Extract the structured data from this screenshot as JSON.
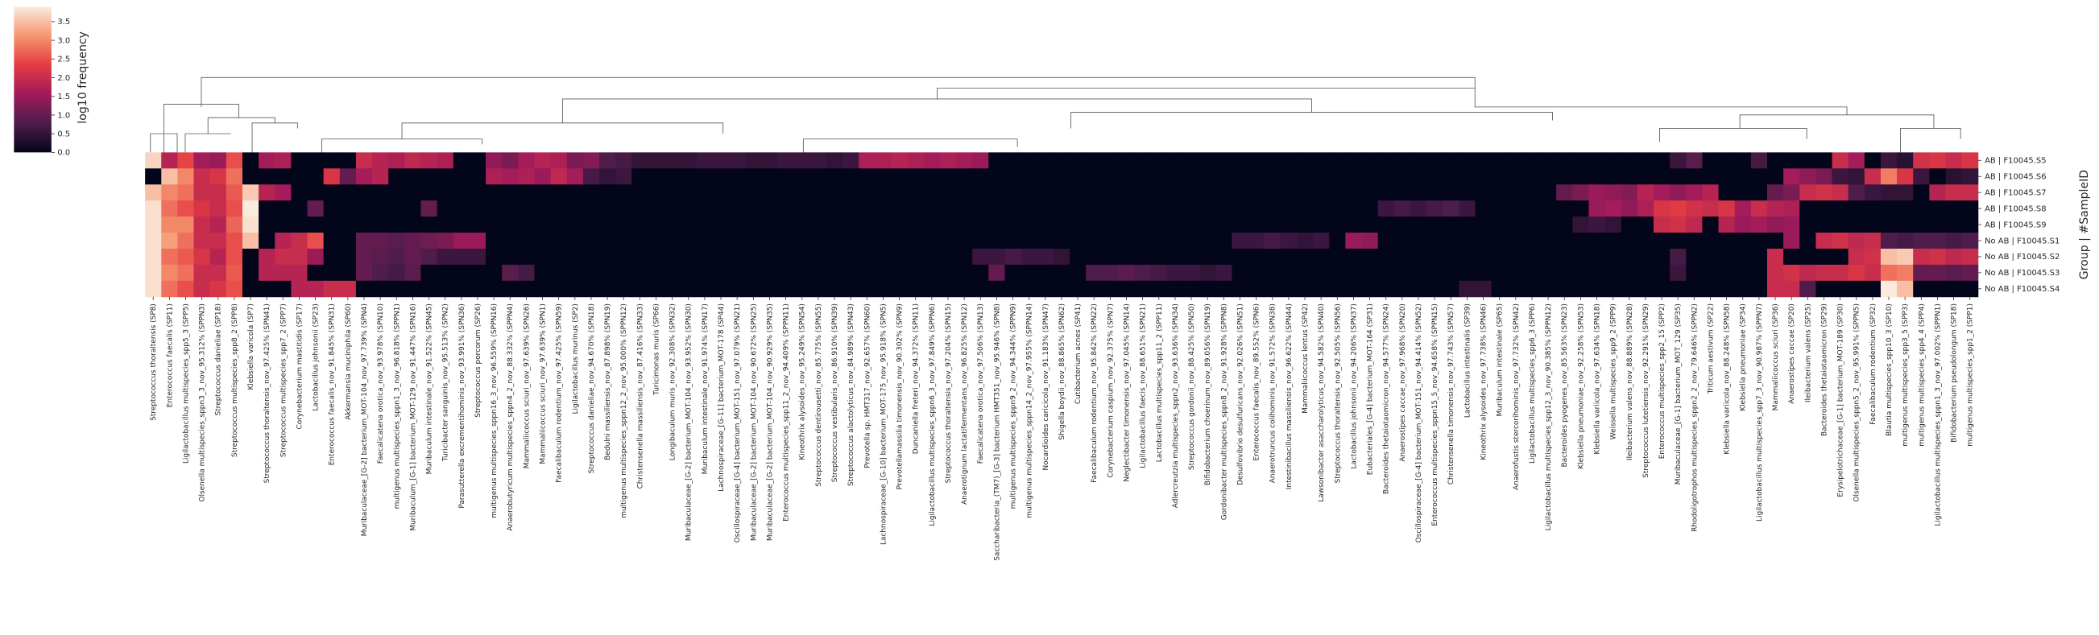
{
  "chart_data": {
    "type": "heatmap",
    "colormap": "rocket",
    "colorbar_label": "log10 frequency",
    "ylabel": "Group | #SampleID",
    "clim": [
      0,
      3.9
    ],
    "colorbar_ticks": [
      {
        "value": 0,
        "label": "0.0"
      },
      {
        "value": 0.5,
        "label": "0.5"
      },
      {
        "value": 1,
        "label": "1.0"
      },
      {
        "value": 1.5,
        "label": "1.5"
      },
      {
        "value": 2,
        "label": "2.0"
      },
      {
        "value": 2.5,
        "label": "2.5"
      },
      {
        "value": 3,
        "label": "3.0"
      },
      {
        "value": 3.5,
        "label": "3.5"
      }
    ],
    "rows": [
      "AB | F10045.S5",
      "AB | F10045.S6",
      "AB | F10045.S7",
      "AB | F10045.S8",
      "AB | F10045.S9",
      "No AB | F10045.S1",
      "No AB | F10045.S2",
      "No AB | F10045.S3",
      "No AB | F10045.S4"
    ],
    "columns": [
      "Streptococcus thoraltensis (SP8)",
      "Enterococcus faecalis (SP11)",
      "Ligilactobacillus multispecies_spp5_3 (SPP5)",
      "Olsenella multispecies_sppn3_3_nov_95.312% (SPPN3)",
      "Streptococcus danieliae (SP18)",
      "Streptococcus multispecies_spp8_2 (SPP8)",
      "Klebsiella varicola (SP7)",
      "Streptococcus thoraltensis_nov_97.425% (SPN41)",
      "Streptococcus multispecies_spp7_2 (SPP7)",
      "Corynebacterium mastitidis (SP17)",
      "Lactobacillus johnsonii (SP23)",
      "Enterococcus faecalis_nov_91.845% (SPN31)",
      "Akkermansia muciniphila (SP60)",
      "Muribaculaceae_[G-2] bacterium_MOT-104_nov_97.739% (SPN4)",
      "Faecalicatena orotica_nov_93.978% (SPN10)",
      "multigenus multispecies_sppn1_3_nov_96.818% (SPPN1)",
      "Muribaculum_[G-1] bacterium_MOT-129_nov_91.447% (SPN16)",
      "Muribaculum intestinale_nov_91.522% (SPN45)",
      "Turicibacter sanguinis_nov_95.513% (SPN2)",
      "Parasutterella excrementihominis_nov_93.991% (SPN36)",
      "Streptococcus porcorum (SP26)",
      "multigenus multispecies_sppn16_3_nov_96.559% (SPPN16)",
      "Anaerobutyricum multispecies_sppn4_2_nov_88.332% (SPPN4)",
      "Mammaliicoccus sciuri_nov_97.639% (SPN26)",
      "Mammaliicoccus sciuri_nov_97.639% (SPN1)",
      "Faecalibaculum rodentium_nov_97.425% (SPN59)",
      "Ligilactobacillus murinus (SP2)",
      "Streptococcus danieliae_nov_94.670% (SPN18)",
      "Bedulni massiliensis_nov_87.898% (SPN19)",
      "multigenus multispecies_sppn12_2_nov_95.000% (SPPN12)",
      "Christensenella massiliensis_nov_87.416% (SPN33)",
      "Turicimonas muris (SP66)",
      "Longibaculum muris_nov_92.308% (SPN32)",
      "Muribaculaceae_[G-2] bacterium_MOT-104_nov_93.952% (SPN30)",
      "Muribaculum intestinale_nov_91.974% (SPN17)",
      "Lachnospiraceae_[G-11] bacterium_MOT-178 (SP44)",
      "Oscillospiraceae_[G-4] bacterium_MOT-151_nov_97.079% (SPN21)",
      "Muribaculaceae_[G-2] bacterium_MOT-104_nov_90.672% (SPN25)",
      "Muribaculaceae_[G-2] bacterium_MOT-104_nov_90.929% (SPN35)",
      "Enterococcus multispecies_spp11_2_nov_94.409% (SPPN11)",
      "Kineothrix alysoides_nov_95.249% (SPN54)",
      "Streptococcus dentirousetti_nov_85.775% (SPN55)",
      "Streptococcus vestibularis_nov_86.910% (SPN39)",
      "Streptococcus alactolyticus_nov_84.989% (SPN43)",
      "Prevotella sp. HMT317_nov_92.657% (SPN60)",
      "Lachnospiraceae_[G-10] bacterium_MOT-175_nov_95.918% (SPN5)",
      "Prevotellamassilia timonensis_nov_90.302% (SPN9)",
      "Duncaniella freteri_nov_94.372% (SPN11)",
      "Ligilactobacillus multispecies_sppn6_3_nov_97.849% (SPPN6)",
      "Streptococcus thoraltensis_nov_97.204% (SPN15)",
      "Anaerotignum lactatifermentans_nov_96.825% (SPN12)",
      "Faecalicatena orotica_nov_97.506% (SPN13)",
      "Saccharibacteria_(TM7)_[G-3] bacterium HMT351_nov_95.946% (SPN8)",
      "multigenus multispecies_sppn9_2_nov_94.344% (SPPN9)",
      "multigenus multispecies_sppn14_2_nov_97.955% (SPPN14)",
      "Nocardioides caricicola_nov_91.183% (SPN47)",
      "Shigella boydii_nov_88.865% (SPN62)",
      "Cutibacterium acnes (SP41)",
      "Faecalibaculum rodentium_nov_95.842% (SPN22)",
      "Corynebacterium caspium_nov_92.375% (SPN7)",
      "Neglectibacter timonensis_nov_97.045% (SPN14)",
      "Ligilactobacillus faecis_nov_88.651% (SPN21)",
      "Lactobacillus multispecies_spp11_2 (SPP11)",
      "Adlercreutzia multispecies_sppn2_nov_93.636% (SPN34)",
      "Streptococcus gordonii_nov_88.425% (SPN50)",
      "Bifidobacterium choerinum_nov_89.056% (SPN19)",
      "Gordonibacter multispecies_sppn8_2_nov_91.928% (SPPN8)",
      "Desulfovibrio desulfuricans_nov_92.026% (SPN51)",
      "Enterococcus faecalis_nov_89.552% (SPN6)",
      "Anaerotruncus colihominis_nov_91.572% (SPN38)",
      "Intestinibacillus massiliensis_nov_96.622% (SPN44)",
      "Mammaliicoccus lentus (SP42)",
      "Lawsonibacter asaccharolyticus_nov_94.582% (SPN40)",
      "Streptococcus thoraltensis_nov_92.505% (SPN56)",
      "Lactobacillus johnsonii_nov_94.206% (SPN37)",
      "Eubacteriales_[G-4] bacterium_MOT-164 (SP31)",
      "Bacteroides thetaiotaomicron_nov_94.577% (SPN24)",
      "Anaerostipes caccae_nov_97.968% (SPN20)",
      "Oscillospiraceae_[G-4] bacterium_MOT-151_nov_94.414% (SPN52)",
      "Enterococcus multispecies_sppn15_5_nov_94.658% (SPPN15)",
      "Christensenella timonensis_nov_97.743% (SPN57)",
      "Lactobacillus intestinalis (SP39)",
      "Kineothrix alysoides_nov_97.738% (SPN46)",
      "Muribaculum intestinale (SP65)",
      "Anaerofustis stercorihominis_nov_97.732% (SPN42)",
      "Ligilactobacillus multispecies_spp6_3 (SPP6)",
      "Ligilactobacillus multispecies_spp12_3_nov_90.385% (SPPN12)",
      "Bacteroides pyogenes_nov_85.563% (SPN23)",
      "Klebsiella pneumoniae_nov_92.258% (SPN53)",
      "Klebsiella variicola_nov_97.634% (SPN18)",
      "Weissella multispecies_spp9_2 (SPP9)",
      "Ileibacterium valens_nov_88.889% (SPN28)",
      "Streptococcus lutetiensis_nov_92.291% (SPN29)",
      "Enterococcus multispecies_spp2_15 (SPP2)",
      "Muribaculaceae_[G-1] bacterium_MOT_129 (SP35)",
      "Rhodoligotrophos multispecies_sppn2_2_nov_79.646% (SPPN2)",
      "Triticum aestivum (SP22)",
      "Klebsiella variicola_nov_88.248% (SPN58)",
      "Klebsiella pneumoniae (SP34)",
      "Ligilactobacillus multispecies_spp7_3_nov_90.987% (SPPN7)",
      "Mammaliicoccus sciuri (SP36)",
      "Anaerostipes caccae (SP20)",
      "Ileibacterium valens (SP25)",
      "Bacteroides thetaiotaomicron (SP29)",
      "Erysipelotrichaceae_[G-1] bacterium_MOT-189 (SP30)",
      "Olsenella multispecies_sppn5_2_nov_95.991% (SPPN5)",
      "Faecalibaculum rodentium (SP32)",
      "Blautia multispecies_spp10_3 (SP10)",
      "multigenus multispecies_spp3_5 (SPP3)",
      "multigenus multispecies_spp4_4 (SPP4)",
      "Ligilactobacillus multispecies_sppn1_3_nov_97.002% (SPPN1)",
      "Bifidobacterium pseudolongum (SP18)",
      "multigenus multispecies_spp1_2 (SPP1)"
    ],
    "values": [
      [
        3.7,
        1.8,
        2.4,
        1.6,
        1.5,
        2.5,
        0,
        1.6,
        1.7,
        0,
        0,
        0,
        0,
        2.0,
        1.8,
        1.7,
        1.9,
        1.8,
        1.7,
        0,
        0,
        1.4,
        1.2,
        1.6,
        1.8,
        1.7,
        1.2,
        1.3,
        0.8,
        0.7,
        0.5,
        0.5,
        0.5,
        0.5,
        0.6,
        0.6,
        0.6,
        0.5,
        0.5,
        0.6,
        0.6,
        0.6,
        0.5,
        0.6,
        1.7,
        1.7,
        1.8,
        1.7,
        1.6,
        1.7,
        1.6,
        1.5,
        0,
        0,
        0,
        0,
        0,
        0,
        0,
        0,
        0,
        0,
        0,
        0,
        0,
        0,
        0,
        0,
        0,
        0,
        0,
        0,
        0,
        0,
        0,
        0,
        0,
        0,
        0,
        0,
        0,
        0,
        0,
        0,
        0,
        0,
        0,
        0,
        0,
        0,
        0,
        0,
        0,
        0,
        0.6,
        0.9,
        0,
        0,
        0,
        0.7,
        0,
        0,
        0,
        0,
        2.0,
        1.6,
        0,
        0.6,
        0.4,
        2.1,
        2.2,
        2.0,
        2.2
      ],
      [
        0,
        3.5,
        3.0,
        2.0,
        2.2,
        2.8,
        0,
        0,
        0,
        0,
        0,
        2.2,
        1.0,
        1.6,
        1.8,
        0,
        0,
        0,
        0,
        0,
        0,
        1.7,
        1.6,
        1.7,
        1.5,
        1.9,
        1.6,
        0.7,
        0.5,
        0.6,
        0,
        0,
        0,
        0,
        0,
        0,
        0,
        0,
        0,
        0,
        0,
        0,
        0,
        0,
        0,
        0,
        0,
        0,
        0,
        0,
        0,
        0,
        0,
        0,
        0,
        0,
        0,
        0,
        0,
        0,
        0,
        0,
        0,
        0,
        0,
        0,
        0,
        0,
        0,
        0,
        0,
        0,
        0,
        0,
        0,
        0,
        0,
        0,
        0,
        0,
        0,
        0,
        0,
        0,
        0,
        0,
        0,
        0,
        0,
        0,
        0,
        0,
        0,
        0,
        0,
        0,
        0,
        0,
        0,
        0,
        0,
        1.6,
        1.4,
        1.2,
        0.6,
        0.5,
        2.0,
        2.9,
        2.2,
        0.6,
        0,
        0.4,
        0.5
      ],
      [
        3.5,
        3.0,
        2.8,
        2.0,
        2.0,
        2.6,
        3.6,
        1.8,
        1.6,
        0,
        0,
        0,
        0,
        0,
        0,
        0,
        0,
        0,
        0,
        0,
        0,
        0,
        0,
        0,
        0,
        0,
        0,
        0,
        0,
        0,
        0,
        0,
        0,
        0,
        0,
        0,
        0,
        0,
        0,
        0,
        0,
        0,
        0,
        0,
        0,
        0,
        0,
        0,
        0,
        0,
        0,
        0,
        0,
        0,
        0,
        0,
        0,
        0,
        0,
        0,
        0,
        0,
        0,
        0,
        0,
        0,
        0,
        0,
        0,
        0,
        0,
        0,
        0,
        0,
        0,
        0,
        0,
        0,
        0,
        0,
        0,
        0,
        0,
        0,
        0,
        0,
        0,
        1.0,
        1.2,
        1.5,
        1.4,
        1.3,
        1.8,
        1.6,
        1.4,
        1.6,
        1.8,
        0,
        0,
        0,
        1.0,
        1.2,
        2.0,
        2.1,
        2.0,
        0.8,
        0.6,
        0.5,
        0.5,
        0,
        1.8,
        2.0,
        2.0
      ],
      [
        3.8,
        2.8,
        2.5,
        2.2,
        2.0,
        2.5,
        3.9,
        0,
        0,
        0,
        1.0,
        0,
        0,
        0,
        0,
        0,
        0,
        1.0,
        0,
        0,
        0,
        0,
        0,
        0,
        0,
        0,
        0,
        0,
        0,
        0,
        0,
        0,
        0,
        0,
        0,
        0,
        0,
        0,
        0,
        0,
        0,
        0,
        0,
        0,
        0,
        0,
        0,
        0,
        0,
        0,
        0,
        0,
        0,
        0,
        0,
        0,
        0,
        0,
        0,
        0,
        0,
        0,
        0,
        0,
        0,
        0,
        0,
        0,
        0,
        0,
        0,
        0,
        0,
        0,
        0,
        0,
        0.6,
        0.7,
        0.6,
        0.7,
        0.8,
        0.6,
        0,
        0,
        0,
        0,
        0,
        0,
        0,
        1.5,
        1.6,
        1.4,
        1.7,
        2.2,
        2.3,
        2.1,
        2.0,
        2.2,
        1.6,
        2.0,
        1.8,
        1.7,
        0,
        0,
        0,
        0,
        0,
        0,
        0,
        0,
        0,
        0,
        0
      ],
      [
        3.8,
        3.0,
        3.0,
        2.0,
        1.8,
        2.7,
        3.8,
        0,
        0,
        0,
        0,
        0,
        0,
        0,
        0,
        0,
        0,
        0,
        0,
        0,
        0,
        0,
        0,
        0,
        0,
        0,
        0,
        0,
        0,
        0,
        0,
        0,
        0,
        0,
        0,
        0,
        0,
        0,
        0,
        0,
        0,
        0,
        0,
        0,
        0,
        0,
        0,
        0,
        0,
        0,
        0,
        0,
        0,
        0,
        0,
        0,
        0,
        0,
        0,
        0,
        0,
        0,
        0,
        0,
        0,
        0,
        0,
        0,
        0,
        0,
        0,
        0,
        0,
        0,
        0,
        0,
        0,
        0,
        0,
        0,
        0,
        0,
        0,
        0,
        0,
        0,
        0,
        0,
        0.5,
        0.6,
        0.5,
        0,
        0,
        2.0,
        2.1,
        1.9,
        0,
        1.8,
        1.5,
        1.6,
        1.4,
        1.5,
        0,
        0,
        0,
        0,
        0,
        0,
        0,
        0,
        0,
        0,
        0
      ],
      [
        3.8,
        3.2,
        2.8,
        2.0,
        2.0,
        2.5,
        3.5,
        0,
        1.8,
        2.0,
        2.5,
        0,
        0,
        1.0,
        1.0,
        0.9,
        1.0,
        1.1,
        1.2,
        1.5,
        1.5,
        0,
        0,
        0,
        0,
        0,
        0,
        0,
        0,
        0,
        0,
        0,
        0,
        0,
        0,
        0,
        0,
        0,
        0,
        0,
        0,
        0,
        0,
        0,
        0,
        0,
        0,
        0,
        0,
        0,
        0,
        0,
        0,
        0,
        0,
        0,
        0,
        0,
        0,
        0,
        0,
        0,
        0,
        0,
        0,
        0,
        0,
        0.6,
        0.6,
        0.7,
        0.6,
        0.5,
        0.6,
        0,
        1.5,
        1.4,
        0,
        0,
        0,
        0,
        0,
        0,
        0,
        0,
        0,
        0,
        0,
        0,
        0,
        0,
        0,
        0,
        0,
        0,
        0,
        0,
        0,
        0,
        0,
        0,
        0,
        1.5,
        0,
        2.0,
        2.1,
        1.9,
        2.0,
        0.8,
        0.7,
        0.8,
        0.8,
        0.7,
        0.8
      ],
      [
        3.8,
        2.8,
        2.6,
        2.2,
        1.8,
        2.5,
        0,
        1.8,
        2.0,
        2.0,
        1.5,
        0,
        0,
        1.0,
        0.9,
        0.8,
        1.0,
        0.8,
        0.6,
        0.6,
        0.6,
        0,
        0,
        0,
        0,
        0,
        0,
        0,
        0,
        0,
        0,
        0,
        0,
        0,
        0,
        0,
        0,
        0,
        0,
        0,
        0,
        0,
        0,
        0,
        0,
        0,
        0,
        0,
        0,
        0,
        0,
        0.6,
        0.6,
        0.7,
        0.6,
        0.6,
        0.5,
        0,
        0,
        0,
        0,
        0,
        0,
        0,
        0,
        0,
        0,
        0,
        0,
        0,
        0,
        0,
        0,
        0,
        0,
        0,
        0,
        0,
        0,
        0,
        0,
        0,
        0,
        0,
        0,
        0,
        0,
        0,
        0,
        0,
        0,
        0,
        0,
        0,
        0.7,
        0,
        0,
        0,
        0,
        0,
        2.0,
        0,
        0,
        0,
        0,
        2.0,
        2.1,
        3.5,
        3.6,
        2.0,
        2.1,
        1.9,
        2.0
      ],
      [
        3.8,
        3.0,
        2.8,
        2.0,
        2.0,
        2.6,
        0,
        1.8,
        1.8,
        1.8,
        0,
        0,
        0,
        1.0,
        0.8,
        0.7,
        0.9,
        0,
        0,
        0,
        0,
        0,
        0.9,
        0.7,
        0,
        0,
        0,
        0,
        0,
        0,
        0,
        0,
        0,
        0,
        0,
        0,
        0,
        0,
        0,
        0,
        0,
        0,
        0,
        0,
        0,
        0,
        0,
        0,
        0,
        0,
        0,
        0,
        1.0,
        0,
        0,
        0,
        0,
        0,
        0.8,
        0.8,
        0.9,
        0.8,
        0.7,
        0.6,
        0.6,
        0.5,
        0.6,
        0,
        0,
        0,
        0,
        0,
        0,
        0,
        0,
        0,
        0,
        0,
        0,
        0,
        0,
        0,
        0,
        0,
        0,
        0,
        0,
        0,
        0,
        0,
        0,
        0,
        0,
        0,
        0.6,
        0,
        0,
        0,
        0,
        0,
        2.0,
        2.1,
        1.9,
        2.0,
        2.0,
        2.2,
        2.0,
        2.8,
        2.9,
        1.0,
        1.0,
        0.9,
        1.0
      ],
      [
        3.8,
        2.8,
        2.5,
        2.0,
        2.2,
        2.5,
        0,
        0,
        0,
        1.8,
        1.8,
        2.0,
        2.0,
        0,
        0,
        0,
        0,
        0,
        0,
        0,
        0,
        0,
        0,
        0,
        0,
        0,
        0,
        0,
        0,
        0,
        0,
        0,
        0,
        0,
        0,
        0,
        0,
        0,
        0,
        0,
        0,
        0,
        0,
        0,
        0,
        0,
        0,
        0,
        0,
        0,
        0,
        0,
        0,
        0,
        0,
        0,
        0,
        0,
        0,
        0,
        0,
        0,
        0,
        0,
        0,
        0,
        0,
        0,
        0,
        0,
        0,
        0,
        0,
        0,
        0,
        0,
        0,
        0,
        0,
        0,
        0,
        0.5,
        0.5,
        0,
        0,
        0,
        0,
        0,
        0,
        0,
        0,
        0,
        0,
        0,
        0,
        0,
        0,
        0,
        0,
        0,
        2.0,
        2.0,
        0.8,
        0,
        0,
        0,
        0,
        3.9,
        3.5,
        0,
        0,
        0,
        0
      ]
    ]
  }
}
